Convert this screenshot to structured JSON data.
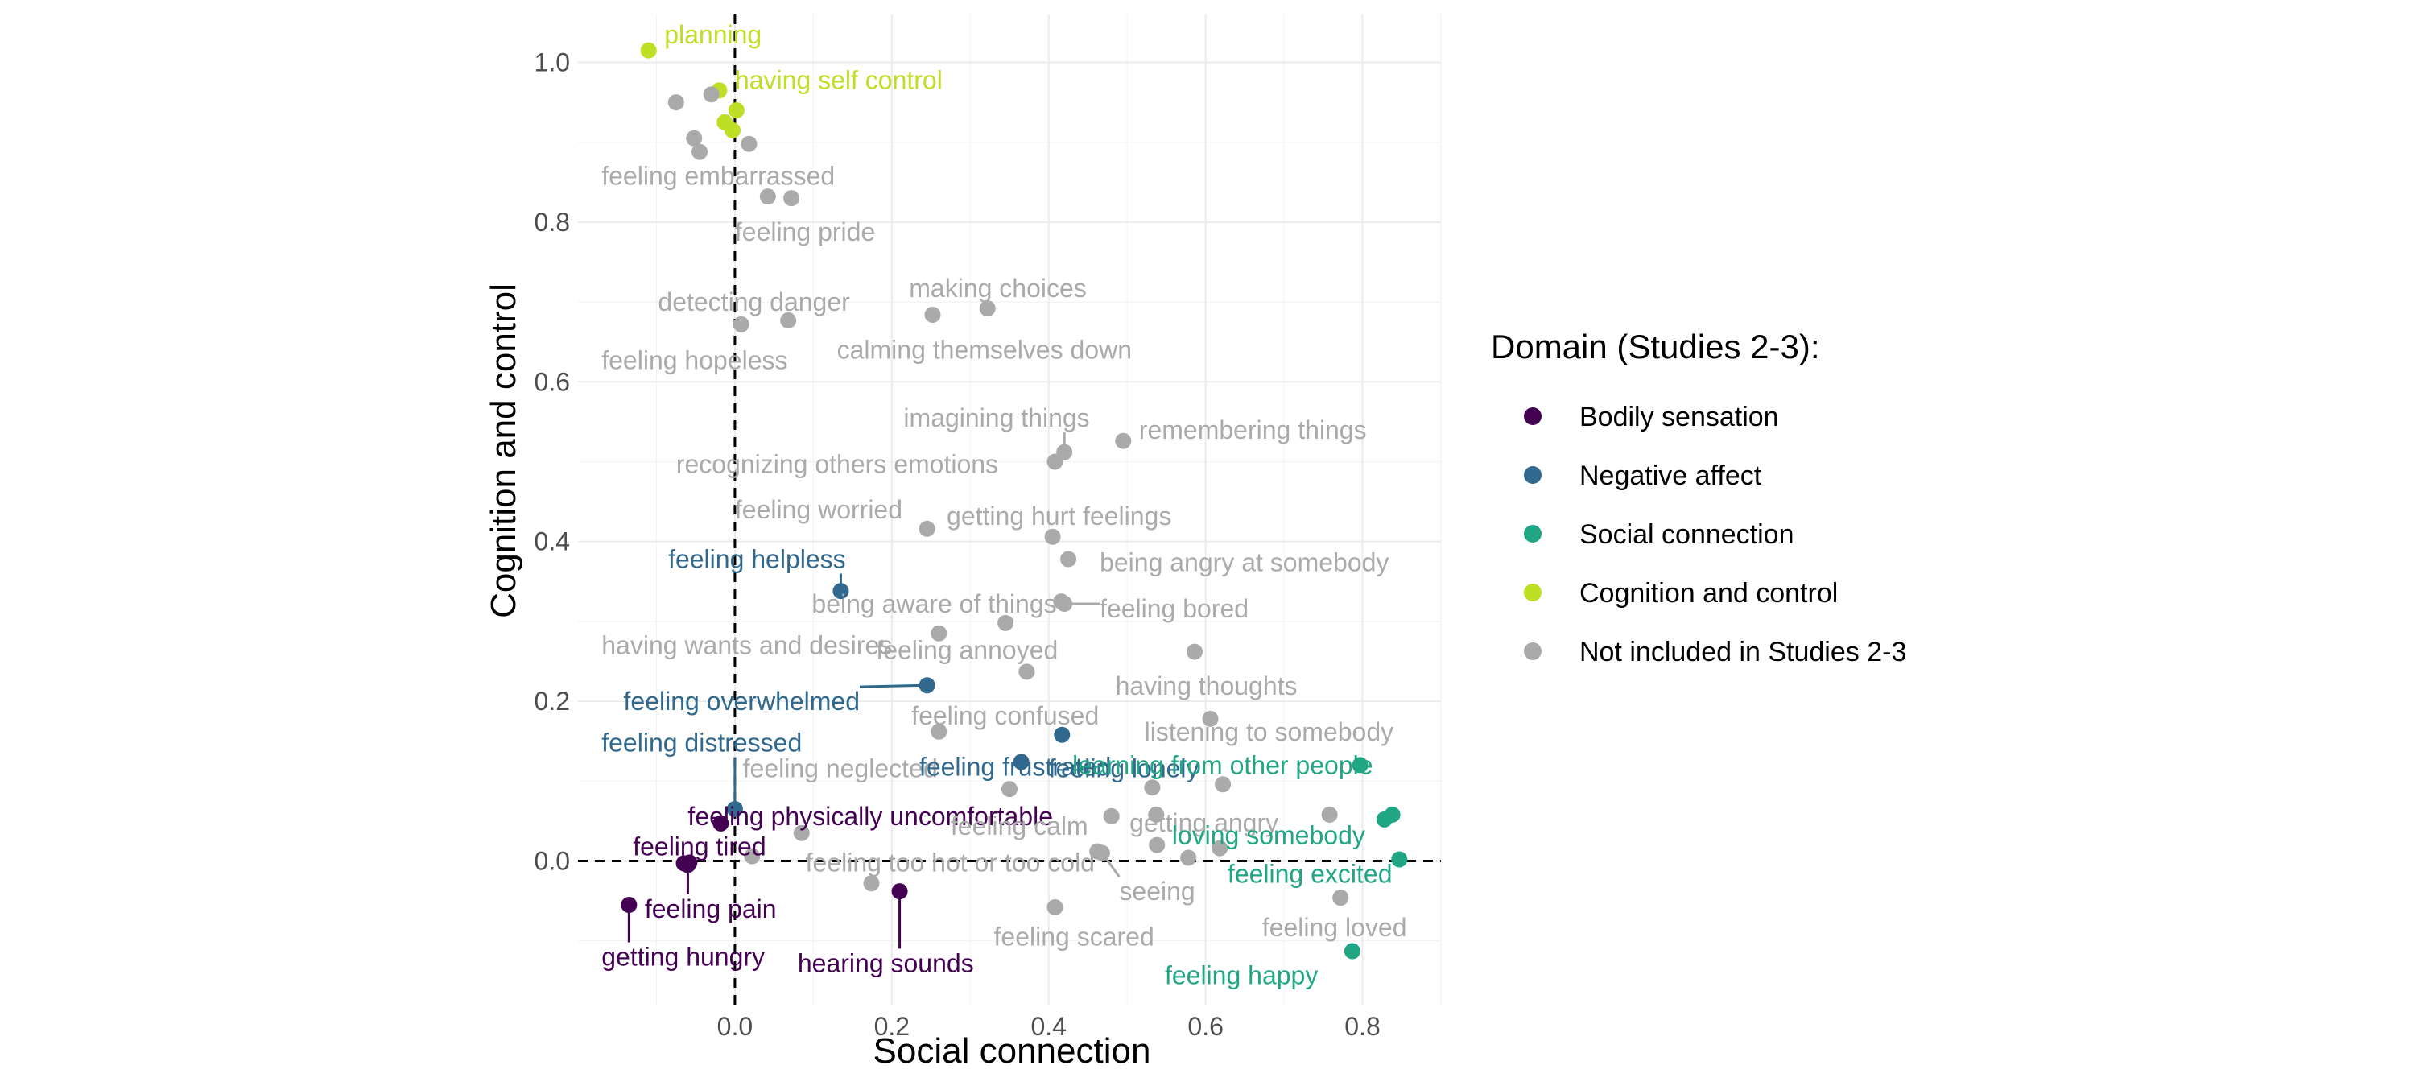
{
  "chart_data": {
    "type": "scatter",
    "title": "",
    "xlabel": "Social connection",
    "ylabel": "Cognition and control",
    "xlim": [
      -0.2,
      0.9
    ],
    "ylim": [
      -0.18,
      1.06
    ],
    "x_ticks": [
      {
        "value": 0.0,
        "label": "0.0"
      },
      {
        "value": 0.2,
        "label": "0.2"
      },
      {
        "value": 0.4,
        "label": "0.4"
      },
      {
        "value": 0.6,
        "label": "0.6"
      },
      {
        "value": 0.8,
        "label": "0.8"
      }
    ],
    "y_ticks": [
      {
        "value": 0.0,
        "label": "0.0"
      },
      {
        "value": 0.2,
        "label": "0.2"
      },
      {
        "value": 0.4,
        "label": "0.4"
      },
      {
        "value": 0.6,
        "label": "0.6"
      },
      {
        "value": 0.8,
        "label": "0.8"
      },
      {
        "value": 1.0,
        "label": "1.0"
      }
    ],
    "reference_lines": {
      "x": 0,
      "y": 0,
      "style": "dashed"
    },
    "grid": true,
    "legend": {
      "title": "Domain (Studies 2-3):",
      "position": "right",
      "entries": [
        {
          "key": "bodily",
          "label": "Bodily sensation",
          "color": "#440154"
        },
        {
          "key": "negative",
          "label": "Negative affect",
          "color": "#31688e"
        },
        {
          "key": "social",
          "label": "Social connection",
          "color": "#21a685"
        },
        {
          "key": "cognition",
          "label": "Cognition and control",
          "color": "#bddf26"
        },
        {
          "key": "other",
          "label": "Not included in Studies 2-3",
          "color": "#aaaaaa"
        }
      ]
    },
    "points": [
      {
        "label": "planning",
        "x": -0.11,
        "y": 1.015,
        "domain": "cognition",
        "lx": -0.09,
        "ly": 1.035
      },
      {
        "label": "having self control",
        "x": -0.02,
        "y": 0.965,
        "domain": "cognition",
        "lx": 0.0,
        "ly": 0.978
      },
      {
        "label": "",
        "x": 0.002,
        "y": 0.94,
        "domain": "cognition"
      },
      {
        "label": "",
        "x": -0.013,
        "y": 0.925,
        "domain": "cognition"
      },
      {
        "label": "",
        "x": -0.003,
        "y": 0.915,
        "domain": "cognition"
      },
      {
        "label": "",
        "x": -0.075,
        "y": 0.95,
        "domain": "other"
      },
      {
        "label": "",
        "x": -0.03,
        "y": 0.96,
        "domain": "other"
      },
      {
        "label": "",
        "x": -0.052,
        "y": 0.905,
        "domain": "other"
      },
      {
        "label": "",
        "x": -0.045,
        "y": 0.888,
        "domain": "other"
      },
      {
        "label": "",
        "x": 0.018,
        "y": 0.898,
        "domain": "other"
      },
      {
        "label": "feeling embarrassed",
        "x": 0.042,
        "y": 0.832,
        "domain": "other",
        "lx": -0.17,
        "ly": 0.858
      },
      {
        "label": "feeling pride",
        "x": 0.072,
        "y": 0.83,
        "domain": "other",
        "lx": 0.0,
        "ly": 0.788
      },
      {
        "label": "making choices",
        "x": 0.322,
        "y": 0.692,
        "domain": "other",
        "lx": 0.222,
        "ly": 0.717
      },
      {
        "label": "detecting danger",
        "x": 0.068,
        "y": 0.677,
        "domain": "other",
        "lx": -0.098,
        "ly": 0.7
      },
      {
        "label": "calming themselves down",
        "x": 0.252,
        "y": 0.684,
        "domain": "other",
        "lx": 0.13,
        "ly": 0.64
      },
      {
        "label": "feeling hopeless",
        "x": 0.008,
        "y": 0.672,
        "domain": "other",
        "lx": -0.17,
        "ly": 0.627
      },
      {
        "label": "imagining things",
        "x": 0.42,
        "y": 0.512,
        "domain": "other",
        "lx": 0.215,
        "ly": 0.555,
        "leader": true
      },
      {
        "label": "remembering things",
        "x": 0.495,
        "y": 0.526,
        "domain": "other",
        "lx": 0.515,
        "ly": 0.54
      },
      {
        "label": "recognizing others emotions",
        "x": 0.408,
        "y": 0.5,
        "domain": "other",
        "lx": -0.075,
        "ly": 0.497
      },
      {
        "label": "feeling worried",
        "x": 0.245,
        "y": 0.416,
        "domain": "other",
        "lx": 0.0,
        "ly": 0.44
      },
      {
        "label": "getting hurt feelings",
        "x": 0.405,
        "y": 0.406,
        "domain": "other",
        "lx": 0.27,
        "ly": 0.432
      },
      {
        "label": "being angry at somebody",
        "x": 0.425,
        "y": 0.378,
        "domain": "other",
        "lx": 0.465,
        "ly": 0.374
      },
      {
        "label": "feeling helpless",
        "x": 0.135,
        "y": 0.338,
        "domain": "negative",
        "lx": -0.085,
        "ly": 0.378,
        "leader": true
      },
      {
        "label": "being aware of things",
        "x": 0.416,
        "y": 0.325,
        "domain": "other",
        "lx": 0.098,
        "ly": 0.322
      },
      {
        "label": "feeling bored",
        "x": 0.42,
        "y": 0.322,
        "domain": "other",
        "lx": 0.465,
        "ly": 0.316,
        "leader": true
      },
      {
        "label": "feeling annoyed",
        "x": 0.345,
        "y": 0.298,
        "domain": "other",
        "lx": 0.18,
        "ly": 0.264
      },
      {
        "label": "having wants and desires",
        "x": 0.26,
        "y": 0.285,
        "domain": "other",
        "lx": -0.17,
        "ly": 0.27
      },
      {
        "label": "having thoughts",
        "x": 0.586,
        "y": 0.262,
        "domain": "other",
        "lx": 0.485,
        "ly": 0.219
      },
      {
        "label": "feeling overwhelmed",
        "x": 0.245,
        "y": 0.22,
        "domain": "negative",
        "lx": -0.142,
        "ly": 0.2,
        "leader": true
      },
      {
        "label": "",
        "x": 0.372,
        "y": 0.237,
        "domain": "other"
      },
      {
        "label": "feeling confused",
        "x": 0.26,
        "y": 0.162,
        "domain": "other",
        "lx": 0.225,
        "ly": 0.182
      },
      {
        "label": "listening to somebody",
        "x": 0.606,
        "y": 0.178,
        "domain": "other",
        "lx": 0.522,
        "ly": 0.162
      },
      {
        "label": "feeling distressed",
        "x": 0.0,
        "y": 0.065,
        "domain": "negative",
        "lx": -0.17,
        "ly": 0.148,
        "leader": true
      },
      {
        "label": "feeling neglected",
        "x": 0.35,
        "y": 0.09,
        "domain": "other",
        "lx": 0.01,
        "ly": 0.116
      },
      {
        "label": "feeling frustrated",
        "x": 0.365,
        "y": 0.124,
        "domain": "negative",
        "lx": 0.235,
        "ly": 0.118
      },
      {
        "label": "feeling lonely",
        "x": 0.417,
        "y": 0.158,
        "domain": "negative",
        "lx": 0.4,
        "ly": 0.116
      },
      {
        "label": "learning from other people",
        "x": 0.797,
        "y": 0.12,
        "domain": "social",
        "lx": 0.43,
        "ly": 0.12
      },
      {
        "label": "",
        "x": 0.532,
        "y": 0.092,
        "domain": "other"
      },
      {
        "label": "",
        "x": 0.622,
        "y": 0.096,
        "domain": "other"
      },
      {
        "label": "feeling physically uncomfortable",
        "x": -0.018,
        "y": 0.047,
        "domain": "bodily",
        "lx": -0.06,
        "ly": 0.056
      },
      {
        "label": "feeling calm",
        "x": 0.48,
        "y": 0.056,
        "domain": "other",
        "lx": 0.275,
        "ly": 0.044
      },
      {
        "label": "getting angry",
        "x": 0.537,
        "y": 0.058,
        "domain": "other",
        "lx": 0.503,
        "ly": 0.048
      },
      {
        "label": "loving somebody",
        "x": 0.828,
        "y": 0.052,
        "domain": "social",
        "lx": 0.557,
        "ly": 0.032
      },
      {
        "label": "",
        "x": 0.838,
        "y": 0.058,
        "domain": "social"
      },
      {
        "label": "",
        "x": 0.758,
        "y": 0.058,
        "domain": "other"
      },
      {
        "label": "",
        "x": 0.085,
        "y": 0.035,
        "domain": "other"
      },
      {
        "label": "",
        "x": 0.538,
        "y": 0.02,
        "domain": "other"
      },
      {
        "label": "",
        "x": 0.618,
        "y": 0.016,
        "domain": "other"
      },
      {
        "label": "",
        "x": 0.578,
        "y": 0.004,
        "domain": "other"
      },
      {
        "label": "feeling tired",
        "x": -0.058,
        "y": -0.002,
        "domain": "bodily",
        "lx": -0.13,
        "ly": 0.018
      },
      {
        "label": "",
        "x": -0.065,
        "y": -0.003,
        "domain": "bodily"
      },
      {
        "label": "",
        "x": 0.022,
        "y": 0.006,
        "domain": "other"
      },
      {
        "label": "feeling too hot or too cold",
        "x": 0.462,
        "y": 0.012,
        "domain": "other",
        "lx": 0.09,
        "ly": -0.002
      },
      {
        "label": "feeling excited",
        "x": 0.847,
        "y": 0.002,
        "domain": "social",
        "lx": 0.628,
        "ly": -0.016
      },
      {
        "label": "seeing",
        "x": 0.468,
        "y": 0.01,
        "domain": "other",
        "lx": 0.49,
        "ly": -0.038,
        "leader": true
      },
      {
        "label": "",
        "x": 0.174,
        "y": -0.028,
        "domain": "other"
      },
      {
        "label": "feeling pain",
        "x": -0.06,
        "y": -0.005,
        "domain": "bodily",
        "lx": -0.115,
        "ly": -0.06,
        "leader": true
      },
      {
        "label": "",
        "x": 0.772,
        "y": -0.046,
        "domain": "other"
      },
      {
        "label": "getting hungry",
        "x": -0.135,
        "y": -0.055,
        "domain": "bodily",
        "lx": -0.17,
        "ly": -0.12,
        "leader": true
      },
      {
        "label": "hearing sounds",
        "x": 0.21,
        "y": -0.038,
        "domain": "bodily",
        "lx": 0.08,
        "ly": -0.128,
        "leader": true
      },
      {
        "label": "feeling scared",
        "x": 0.408,
        "y": -0.058,
        "domain": "other",
        "lx": 0.33,
        "ly": -0.095
      },
      {
        "label": "feeling loved",
        "x": 0.772,
        "y": -0.046,
        "domain": "other",
        "lx": 0.672,
        "ly": -0.083
      },
      {
        "label": "feeling happy",
        "x": 0.787,
        "y": -0.113,
        "domain": "social",
        "lx": 0.548,
        "ly": -0.143
      }
    ]
  }
}
